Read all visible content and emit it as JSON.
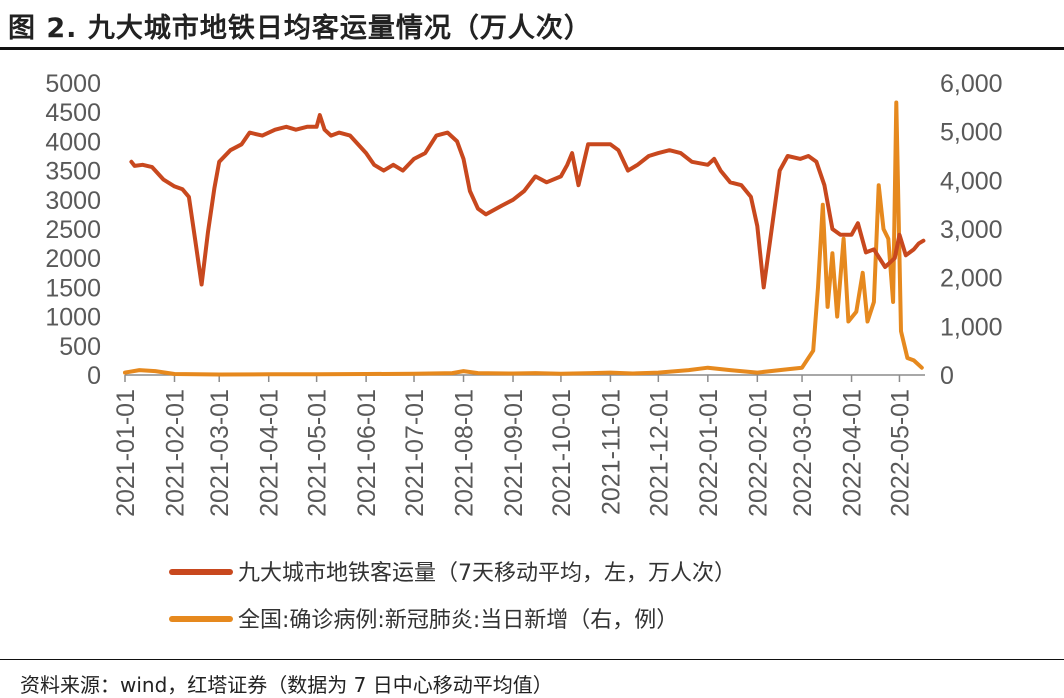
{
  "header": {
    "title": "图 2. 九大城市地铁日均客运量情况（万人次）"
  },
  "footer": {
    "source": "资料来源：wind，红塔证券（数据为 7 日中心移动平均值）"
  },
  "chart_data": {
    "type": "line",
    "title": "九大城市地铁日均客运量情况（万人次）",
    "x_tick_labels": [
      "2021-01-01",
      "2021-02-01",
      "2021-03-01",
      "2021-04-01",
      "2021-05-01",
      "2021-06-01",
      "2021-07-01",
      "2021-08-01",
      "2021-09-01",
      "2021-10-01",
      "2021-11-01",
      "2021-12-01",
      "2022-01-01",
      "2022-02-01",
      "2022-03-01",
      "2022-04-01",
      "2022-05-01"
    ],
    "y_left": {
      "ticks": [
        0,
        500,
        1000,
        1500,
        2000,
        2500,
        3000,
        3500,
        4000,
        4500,
        5000
      ],
      "tick_labels": [
        "0",
        "500",
        "1000",
        "1500",
        "2000",
        "2500",
        "3000",
        "3500",
        "4000",
        "4500",
        "5000"
      ],
      "range": [
        0,
        5000
      ]
    },
    "y_right": {
      "ticks": [
        0,
        1000,
        2000,
        3000,
        4000,
        5000,
        6000
      ],
      "tick_labels": [
        "0",
        "1,000",
        "2,000",
        "3,000",
        "4,000",
        "5,000",
        "6,000"
      ],
      "range": [
        0,
        6000
      ]
    },
    "grid": false,
    "legend_position": "bottom",
    "series": [
      {
        "name": "九大城市地铁客运量（7天移动平均，左，万人次）",
        "axis": "left",
        "color": "#C8481E",
        "points": [
          [
            "2021-01-05",
            3650
          ],
          [
            "2021-01-07",
            3580
          ],
          [
            "2021-01-12",
            3600
          ],
          [
            "2021-01-18",
            3560
          ],
          [
            "2021-01-25",
            3350
          ],
          [
            "2021-02-01",
            3230
          ],
          [
            "2021-02-06",
            3180
          ],
          [
            "2021-02-10",
            3050
          ],
          [
            "2021-02-14",
            2300
          ],
          [
            "2021-02-18",
            1550
          ],
          [
            "2021-02-22",
            2450
          ],
          [
            "2021-02-26",
            3200
          ],
          [
            "2021-03-01",
            3650
          ],
          [
            "2021-03-08",
            3850
          ],
          [
            "2021-03-15",
            3950
          ],
          [
            "2021-03-20",
            4150
          ],
          [
            "2021-03-28",
            4100
          ],
          [
            "2021-04-05",
            4200
          ],
          [
            "2021-04-12",
            4250
          ],
          [
            "2021-04-18",
            4200
          ],
          [
            "2021-04-25",
            4250
          ],
          [
            "2021-05-01",
            4250
          ],
          [
            "2021-05-03",
            4450
          ],
          [
            "2021-05-06",
            4200
          ],
          [
            "2021-05-10",
            4100
          ],
          [
            "2021-05-15",
            4150
          ],
          [
            "2021-05-22",
            4100
          ],
          [
            "2021-06-01",
            3800
          ],
          [
            "2021-06-06",
            3600
          ],
          [
            "2021-06-12",
            3500
          ],
          [
            "2021-06-18",
            3600
          ],
          [
            "2021-06-24",
            3500
          ],
          [
            "2021-07-01",
            3700
          ],
          [
            "2021-07-08",
            3800
          ],
          [
            "2021-07-15",
            4100
          ],
          [
            "2021-07-22",
            4150
          ],
          [
            "2021-07-28",
            4000
          ],
          [
            "2021-08-01",
            3700
          ],
          [
            "2021-08-05",
            3150
          ],
          [
            "2021-08-10",
            2850
          ],
          [
            "2021-08-15",
            2750
          ],
          [
            "2021-08-25",
            2900
          ],
          [
            "2021-09-01",
            3000
          ],
          [
            "2021-09-08",
            3150
          ],
          [
            "2021-09-15",
            3400
          ],
          [
            "2021-09-22",
            3300
          ],
          [
            "2021-10-01",
            3400
          ],
          [
            "2021-10-05",
            3600
          ],
          [
            "2021-10-08",
            3800
          ],
          [
            "2021-10-12",
            3250
          ],
          [
            "2021-10-18",
            3950
          ],
          [
            "2021-10-25",
            3950
          ],
          [
            "2021-11-01",
            3950
          ],
          [
            "2021-11-06",
            3850
          ],
          [
            "2021-11-12",
            3500
          ],
          [
            "2021-11-18",
            3600
          ],
          [
            "2021-11-25",
            3750
          ],
          [
            "2021-12-01",
            3800
          ],
          [
            "2021-12-08",
            3850
          ],
          [
            "2021-12-15",
            3800
          ],
          [
            "2021-12-22",
            3650
          ],
          [
            "2022-01-01",
            3600
          ],
          [
            "2022-01-05",
            3700
          ],
          [
            "2022-01-09",
            3500
          ],
          [
            "2022-01-15",
            3300
          ],
          [
            "2022-01-22",
            3250
          ],
          [
            "2022-01-28",
            3050
          ],
          [
            "2022-02-01",
            2550
          ],
          [
            "2022-02-05",
            1500
          ],
          [
            "2022-02-10",
            2500
          ],
          [
            "2022-02-15",
            3500
          ],
          [
            "2022-02-20",
            3750
          ],
          [
            "2022-02-28",
            3700
          ],
          [
            "2022-03-05",
            3750
          ],
          [
            "2022-03-10",
            3650
          ],
          [
            "2022-03-15",
            3250
          ],
          [
            "2022-03-20",
            2500
          ],
          [
            "2022-03-25",
            2400
          ],
          [
            "2022-04-01",
            2400
          ],
          [
            "2022-04-05",
            2600
          ],
          [
            "2022-04-10",
            2100
          ],
          [
            "2022-04-15",
            2150
          ],
          [
            "2022-04-22",
            1850
          ],
          [
            "2022-04-28",
            2000
          ],
          [
            "2022-05-01",
            2400
          ],
          [
            "2022-05-05",
            2050
          ],
          [
            "2022-05-10",
            2150
          ],
          [
            "2022-05-13",
            2250
          ],
          [
            "2022-05-16",
            2300
          ]
        ]
      },
      {
        "name": "全国:确诊病例:新冠肺炎:当日新增（右，例）",
        "axis": "right",
        "color": "#E6891E",
        "points": [
          [
            "2021-01-01",
            50
          ],
          [
            "2021-01-10",
            100
          ],
          [
            "2021-01-20",
            80
          ],
          [
            "2021-02-01",
            20
          ],
          [
            "2021-03-01",
            10
          ],
          [
            "2021-04-01",
            15
          ],
          [
            "2021-05-01",
            15
          ],
          [
            "2021-06-01",
            20
          ],
          [
            "2021-07-01",
            25
          ],
          [
            "2021-07-25",
            40
          ],
          [
            "2021-08-01",
            80
          ],
          [
            "2021-08-10",
            40
          ],
          [
            "2021-09-01",
            30
          ],
          [
            "2021-09-15",
            40
          ],
          [
            "2021-10-01",
            25
          ],
          [
            "2021-10-20",
            40
          ],
          [
            "2021-11-01",
            50
          ],
          [
            "2021-11-15",
            30
          ],
          [
            "2021-12-01",
            50
          ],
          [
            "2021-12-20",
            100
          ],
          [
            "2022-01-01",
            150
          ],
          [
            "2022-01-15",
            100
          ],
          [
            "2022-02-01",
            50
          ],
          [
            "2022-02-20",
            120
          ],
          [
            "2022-03-01",
            150
          ],
          [
            "2022-03-08",
            500
          ],
          [
            "2022-03-11",
            1800
          ],
          [
            "2022-03-14",
            3500
          ],
          [
            "2022-03-17",
            1400
          ],
          [
            "2022-03-20",
            2500
          ],
          [
            "2022-03-23",
            1200
          ],
          [
            "2022-03-27",
            2800
          ],
          [
            "2022-03-30",
            1100
          ],
          [
            "2022-04-04",
            1300
          ],
          [
            "2022-04-08",
            2100
          ],
          [
            "2022-04-11",
            1100
          ],
          [
            "2022-04-15",
            1500
          ],
          [
            "2022-04-18",
            3900
          ],
          [
            "2022-04-21",
            3000
          ],
          [
            "2022-04-24",
            2800
          ],
          [
            "2022-04-27",
            1500
          ],
          [
            "2022-04-29",
            5600
          ],
          [
            "2022-05-02",
            900
          ],
          [
            "2022-05-06",
            350
          ],
          [
            "2022-05-10",
            300
          ],
          [
            "2022-05-15",
            150
          ]
        ]
      }
    ]
  }
}
